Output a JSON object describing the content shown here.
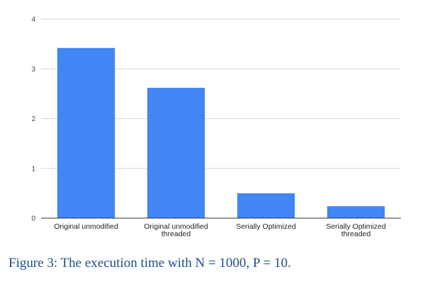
{
  "chart_data": {
    "type": "bar",
    "categories": [
      [
        "Original unmodified"
      ],
      [
        "Original unmodified",
        "threaded"
      ],
      [
        "Serially Optimized"
      ],
      [
        "Serially Optimized",
        "threaded"
      ]
    ],
    "values": [
      3.42,
      2.62,
      0.5,
      0.24
    ],
    "ylim": [
      0,
      4
    ],
    "yticks": [
      "0",
      "1",
      "2",
      "3",
      "4"
    ],
    "grid": true,
    "legend": "none",
    "bar_color": "#4285f4"
  },
  "caption": "Figure 3: The execution time with N = 1000, P = 10."
}
